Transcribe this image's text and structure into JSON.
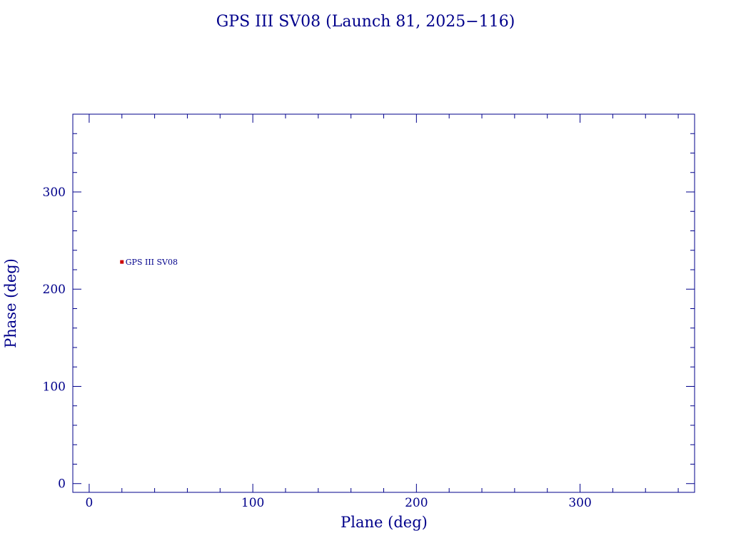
{
  "chart_data": {
    "type": "scatter",
    "title": "GPS III SV08 (Launch 81, 2025−116)",
    "xlabel": "Plane (deg)",
    "ylabel": "Phase (deg)",
    "xlim": [
      -10,
      370
    ],
    "ylim": [
      -9,
      380
    ],
    "x_ticks": [
      0,
      100,
      200,
      300
    ],
    "y_ticks": [
      0,
      100,
      200,
      300
    ],
    "x_minor_step": 20,
    "y_minor_step": 20,
    "grid": false,
    "series": [
      {
        "points": [
          {
            "x": 20,
            "y": 228,
            "label": "GPS III SV08"
          }
        ]
      }
    ]
  },
  "colors": {
    "axis": "#00008b",
    "text": "#00008b",
    "point": "#cc0000"
  }
}
